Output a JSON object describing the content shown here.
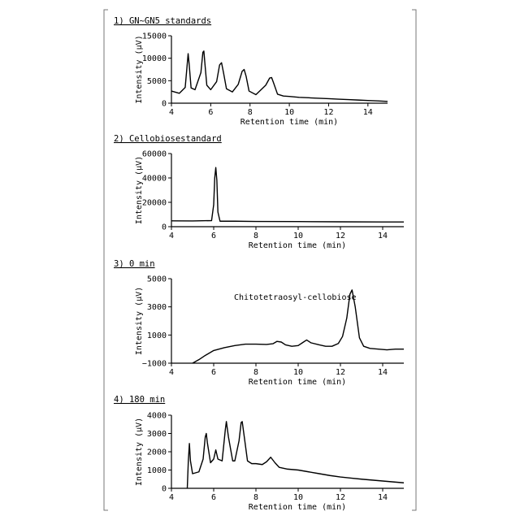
{
  "chart_data": [
    {
      "type": "line",
      "title": "1) GN~GN5 standards",
      "xlabel": "Retention time (min)",
      "ylabel": "Intensity (μV)",
      "xlim": [
        4,
        15
      ],
      "ylim": [
        0,
        15000
      ],
      "x_ticks": [
        4,
        6,
        8,
        10,
        12,
        14
      ],
      "y_ticks": [
        0,
        5000,
        10000,
        15000
      ],
      "grid": false,
      "series": [
        {
          "x": [
            4.0,
            4.4,
            4.7,
            4.8,
            4.85,
            4.9,
            5.0,
            5.2,
            5.5,
            5.6,
            5.65,
            5.7,
            5.8,
            6.0,
            6.3,
            6.45,
            6.55,
            6.65,
            6.8,
            7.1,
            7.4,
            7.6,
            7.7,
            7.8,
            7.95,
            8.3,
            8.8,
            9.0,
            9.1,
            9.2,
            9.4,
            9.7,
            10.0,
            10.5,
            11.0,
            11.5,
            12.0,
            12.5,
            13.0,
            13.5,
            14.0,
            14.5,
            15.0
          ],
          "y": [
            2700,
            2200,
            3500,
            8500,
            11000,
            8800,
            3400,
            3000,
            6800,
            11300,
            11600,
            9000,
            4000,
            3000,
            4800,
            8500,
            9000,
            6800,
            3200,
            2500,
            4200,
            7100,
            7500,
            6000,
            2700,
            1900,
            4000,
            5600,
            5700,
            4500,
            2000,
            1600,
            1500,
            1300,
            1200,
            1100,
            1000,
            900,
            800,
            700,
            600,
            500,
            400
          ]
        }
      ]
    },
    {
      "type": "line",
      "title": "2) Cellobiosestandard",
      "xlabel": "Retention time (min)",
      "ylabel": "Intensity (μV)",
      "xlim": [
        4,
        15
      ],
      "ylim": [
        0,
        60000
      ],
      "x_ticks": [
        4,
        6,
        8,
        10,
        12,
        14
      ],
      "y_ticks": [
        0,
        20000,
        40000,
        60000
      ],
      "grid": false,
      "series": [
        {
          "x": [
            4.0,
            5.0,
            5.9,
            6.0,
            6.05,
            6.1,
            6.15,
            6.2,
            6.3,
            7.0,
            8.0,
            10.0,
            12.0,
            14.0,
            15.0
          ],
          "y": [
            4800,
            4700,
            5000,
            18000,
            40000,
            48500,
            38000,
            12000,
            4500,
            4500,
            4300,
            4200,
            4000,
            3900,
            3900
          ]
        }
      ]
    },
    {
      "type": "line",
      "title": "3) 0 min",
      "xlabel": "Retention time (min)",
      "ylabel": "Intensity (μV)",
      "xlim": [
        4,
        15
      ],
      "ylim": [
        -1000,
        5000
      ],
      "x_ticks": [
        4,
        6,
        8,
        10,
        12,
        14
      ],
      "y_ticks": [
        -1000,
        1000,
        3000,
        5000
      ],
      "y_tick_labels": [
        "−1000",
        "1000",
        "3000",
        "5000"
      ],
      "grid": false,
      "annotations": [
        "Chitotetraosyl-cellobiose"
      ],
      "series": [
        {
          "x": [
            5.0,
            5.3,
            5.6,
            6.0,
            6.5,
            7.0,
            7.5,
            8.0,
            8.5,
            8.8,
            9.0,
            9.2,
            9.4,
            9.7,
            10.0,
            10.2,
            10.4,
            10.6,
            11.0,
            11.3,
            11.6,
            11.9,
            12.1,
            12.3,
            12.45,
            12.55,
            12.7,
            12.9,
            13.1,
            13.4,
            13.8,
            14.2,
            14.6,
            15.0
          ],
          "y": [
            -1000,
            -750,
            -450,
            -100,
            100,
            250,
            350,
            350,
            330,
            380,
            550,
            500,
            300,
            200,
            250,
            450,
            650,
            450,
            300,
            200,
            200,
            400,
            900,
            2200,
            3900,
            4200,
            3000,
            800,
            200,
            50,
            0,
            -50,
            0,
            0
          ]
        }
      ]
    },
    {
      "type": "line",
      "title": "4) 180 min",
      "xlabel": "Retention time (min)",
      "ylabel": "Intensity (μV)",
      "xlim": [
        4,
        15
      ],
      "ylim": [
        0,
        4000
      ],
      "x_ticks": [
        4,
        6,
        8,
        10,
        12,
        14
      ],
      "y_ticks": [
        0,
        1000,
        2000,
        3000,
        4000
      ],
      "grid": false,
      "series": [
        {
          "x": [
            4.75,
            4.8,
            4.85,
            4.9,
            5.0,
            5.3,
            5.5,
            5.6,
            5.65,
            5.7,
            5.85,
            6.0,
            6.1,
            6.2,
            6.4,
            6.55,
            6.6,
            6.7,
            6.9,
            7.0,
            7.2,
            7.3,
            7.35,
            7.45,
            7.6,
            7.8,
            8.0,
            8.3,
            8.5,
            8.7,
            8.9,
            9.1,
            9.5,
            10.0,
            10.5,
            11.0,
            11.5,
            12.0,
            12.5,
            13.0,
            13.5,
            14.0,
            14.5,
            15.0
          ],
          "y": [
            0,
            1500,
            2450,
            1500,
            800,
            900,
            1600,
            2800,
            3000,
            2500,
            1400,
            1600,
            2100,
            1600,
            1500,
            3200,
            3650,
            2800,
            1500,
            1500,
            2600,
            3600,
            3650,
            2800,
            1500,
            1350,
            1350,
            1300,
            1450,
            1700,
            1400,
            1150,
            1050,
            1000,
            900,
            800,
            700,
            620,
            560,
            500,
            450,
            400,
            350,
            300
          ]
        }
      ]
    }
  ]
}
